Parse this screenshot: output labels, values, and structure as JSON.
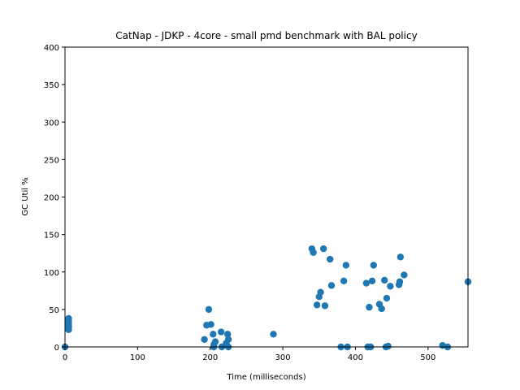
{
  "chart_data": {
    "type": "scatter",
    "title": "CatNap - JDKP - 4core -  small pmd benchmark with BAL policy",
    "xlabel": "Time (milliseconds)",
    "ylabel": "GC Util %",
    "xlim": [
      0,
      555
    ],
    "ylim": [
      0,
      400
    ],
    "xticks": [
      0,
      100,
      200,
      300,
      400,
      500
    ],
    "yticks": [
      0,
      50,
      100,
      150,
      200,
      250,
      300,
      350,
      400
    ],
    "grid": false,
    "marker_color": "#1f77b4",
    "series": [
      {
        "x": [
          0,
          5,
          5,
          5,
          5,
          5,
          5,
          192,
          195,
          198,
          201,
          204,
          205,
          207,
          215,
          216,
          222,
          224,
          225,
          205,
          225,
          287,
          340,
          342,
          347,
          350,
          352,
          356,
          358,
          365,
          367,
          380,
          384,
          387,
          389,
          415,
          417,
          419,
          421,
          423,
          425,
          433,
          436,
          440,
          442,
          443,
          445,
          448,
          460,
          461,
          462,
          467,
          520,
          527,
          555
        ],
        "y": [
          0,
          38,
          34,
          31,
          28,
          26,
          23,
          10,
          29,
          50,
          30,
          17,
          3,
          7,
          20,
          0,
          5,
          17,
          10,
          0,
          0,
          17,
          131,
          126,
          56,
          67,
          73,
          131,
          55,
          117,
          82,
          0,
          88,
          109,
          0,
          85,
          0,
          53,
          0,
          88,
          109,
          57,
          51,
          89,
          0,
          65,
          1,
          81,
          83,
          87,
          120,
          96,
          2,
          0,
          87
        ]
      }
    ]
  }
}
